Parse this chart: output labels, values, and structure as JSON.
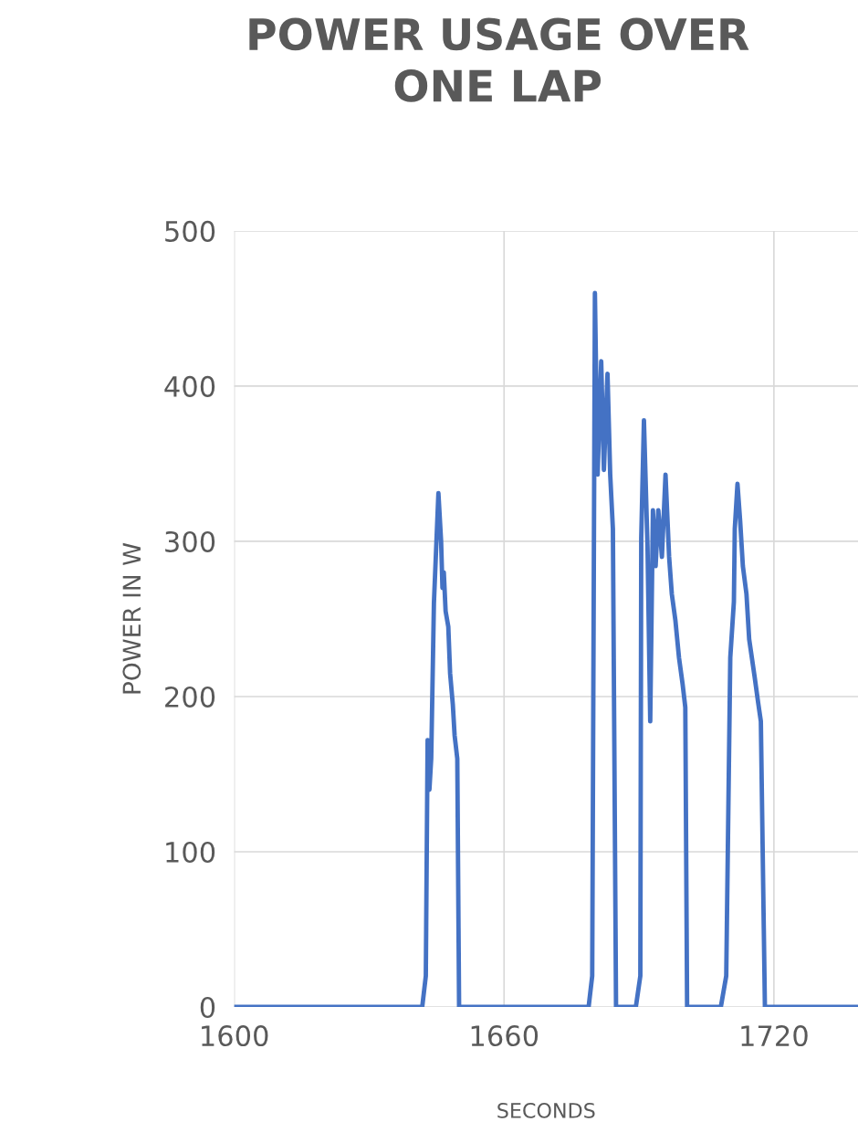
{
  "chart_data": {
    "type": "line",
    "title": "POWER USAGE OVER\nONE LAP",
    "xlabel": "SECONDS",
    "ylabel": "POWER IN W",
    "x": [
      1600,
      1641.8,
      1642.6,
      1643.0,
      1643.4,
      1643.8,
      1644.4,
      1645.4,
      1646.0,
      1646.3,
      1646.6,
      1647.0,
      1647.6,
      1648.0,
      1648.6,
      1649.0,
      1649.6,
      1650.0,
      1678.8,
      1679.6,
      1680.2,
      1680.8,
      1681.6,
      1682.2,
      1683.0,
      1683.6,
      1684.2,
      1684.9,
      1689.3,
      1690.3,
      1690.5,
      1691.1,
      1691.9,
      1692.5,
      1693.1,
      1693.7,
      1694.3,
      1695.1,
      1695.9,
      1696.7,
      1697.3,
      1698.1,
      1698.9,
      1699.7,
      1700.3,
      1700.7,
      1708.2,
      1709.4,
      1710.3,
      1711.1,
      1711.3,
      1711.9,
      1712.5,
      1713.1,
      1713.9,
      1714.5,
      1715.7,
      1716.5,
      1717.1,
      1718.0,
      1738.7
    ],
    "series": [
      {
        "color": "#4472c4",
        "values": [
          0,
          0,
          20,
          172,
          140,
          160,
          260,
          331,
          300,
          270,
          280,
          255,
          245,
          215,
          195,
          175,
          160,
          0,
          0,
          20,
          460,
          343,
          416,
          346,
          408,
          343,
          308,
          0,
          0,
          20,
          302,
          378,
          296,
          184,
          320,
          284,
          320,
          290,
          343,
          290,
          266,
          249,
          225,
          208,
          193,
          0,
          0,
          20,
          225,
          261,
          308,
          337,
          313,
          284,
          266,
          237,
          213,
          196,
          184,
          0,
          0
        ]
      }
    ],
    "xlim": [
      1600,
      1738.7
    ],
    "xticks": [
      1600,
      1660,
      1720
    ],
    "ylim": [
      0,
      500
    ],
    "yticks": [
      0,
      100,
      200,
      300,
      400,
      500
    ],
    "grid": true,
    "marker": "none",
    "line_style": "solid"
  }
}
